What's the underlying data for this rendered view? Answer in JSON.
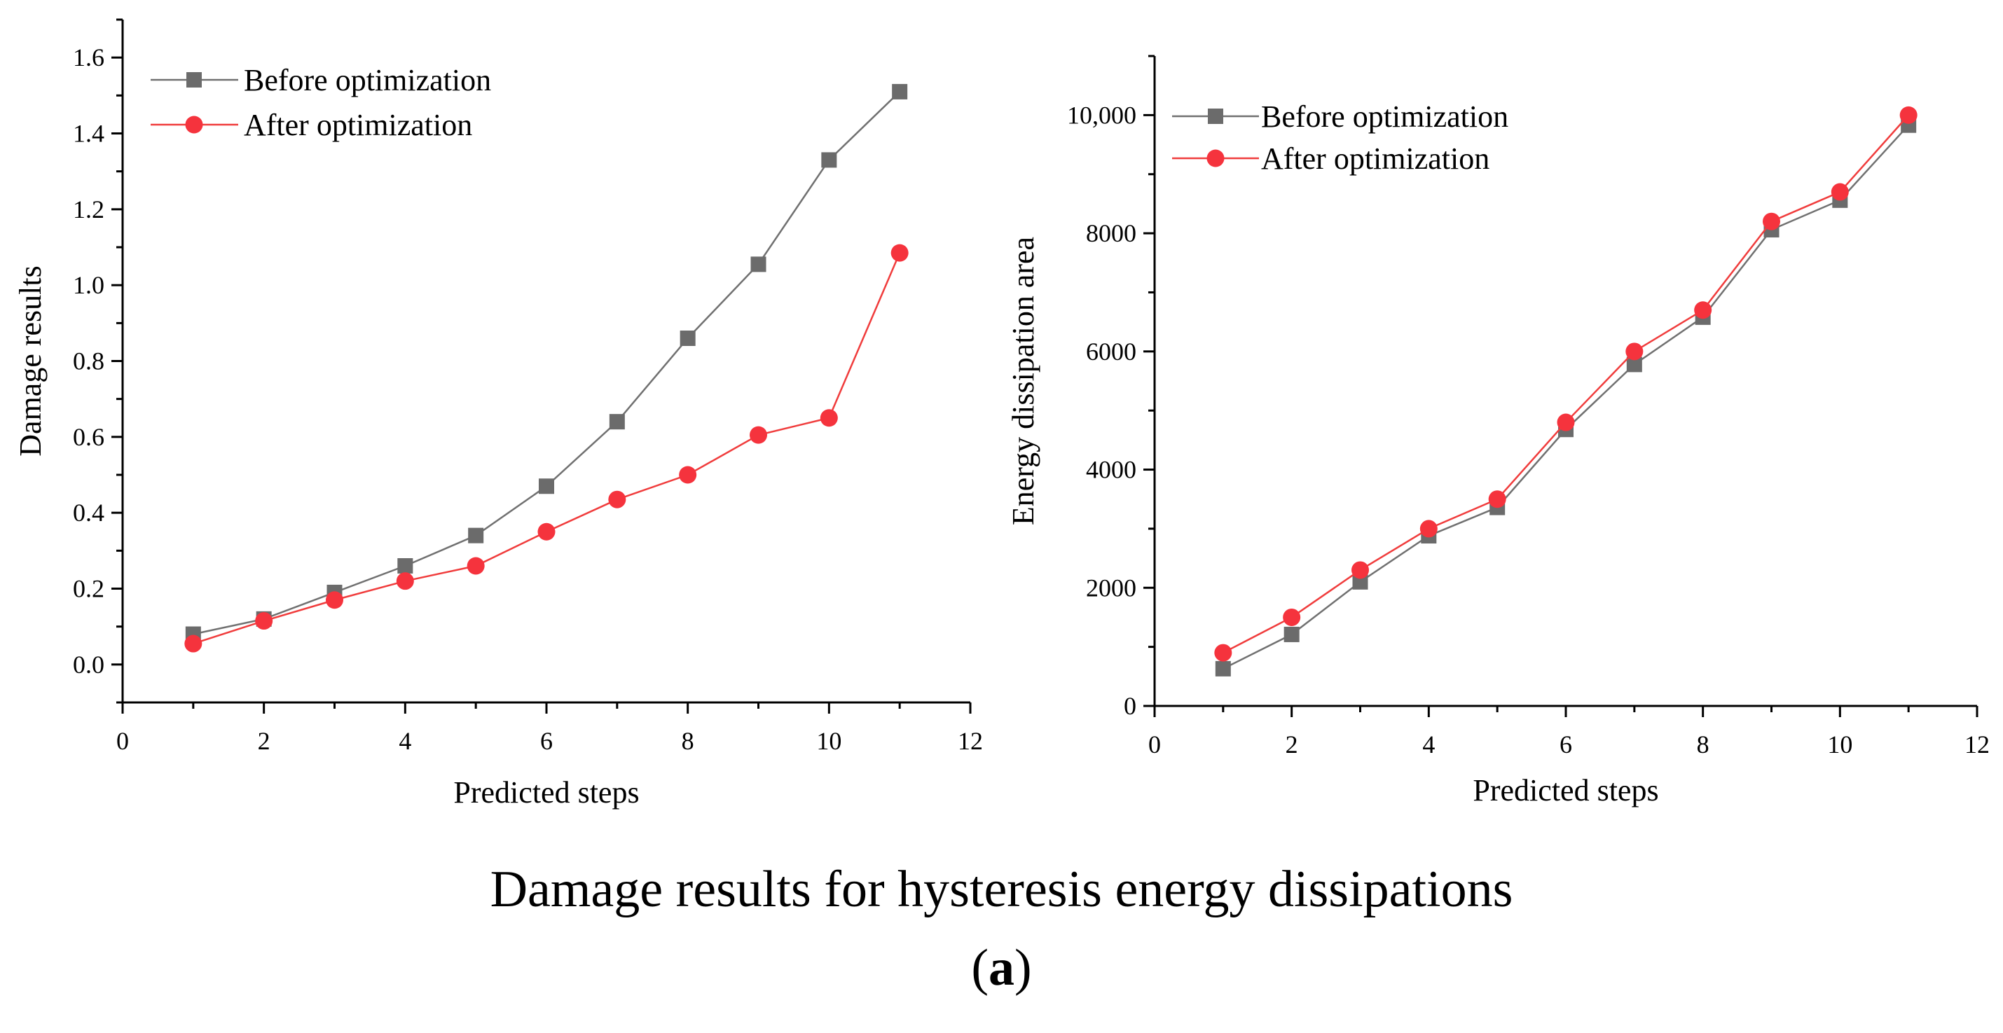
{
  "figure": {
    "caption": "Damage results for hysteresis energy dissipations",
    "label_open": "(",
    "label_letter": "a",
    "label_close": ")"
  },
  "chart_data": [
    {
      "type": "line",
      "title": "",
      "xlabel": "Predicted steps",
      "ylabel": "Damage results",
      "xlim": [
        0,
        12
      ],
      "ylim": [
        -0.1,
        1.7
      ],
      "xticks": [
        0,
        2,
        4,
        6,
        8,
        10,
        12
      ],
      "xtick_labels": [
        "0",
        "2",
        "4",
        "6",
        "8",
        "10",
        "12"
      ],
      "yticks": [
        0.0,
        0.2,
        0.4,
        0.6,
        0.8,
        1.0,
        1.2,
        1.4,
        1.6
      ],
      "ytick_labels": [
        "0.0",
        "0.2",
        "0.4",
        "0.6",
        "0.8",
        "1.0",
        "1.2",
        "1.4",
        "1.6"
      ],
      "legend_position": "top-left",
      "grid": false,
      "series": [
        {
          "name": "Before optimization",
          "marker": "square",
          "line_color": "#707070",
          "marker_color": "#6b6b6b",
          "x": [
            1,
            2,
            3,
            4,
            5,
            6,
            7,
            8,
            9,
            10,
            11
          ],
          "values": [
            0.08,
            0.12,
            0.19,
            0.26,
            0.34,
            0.47,
            0.64,
            0.86,
            1.055,
            1.33,
            1.51
          ]
        },
        {
          "name": "After optimization",
          "marker": "circle",
          "line_color": "#f03c3c",
          "marker_color": "#f5333d",
          "x": [
            1,
            2,
            3,
            4,
            5,
            6,
            7,
            8,
            9,
            10,
            11
          ],
          "values": [
            0.055,
            0.115,
            0.17,
            0.22,
            0.26,
            0.35,
            0.435,
            0.5,
            0.605,
            0.65,
            1.085
          ]
        }
      ]
    },
    {
      "type": "line",
      "title": "",
      "xlabel": "Predicted steps",
      "ylabel": "Energy dissipation area",
      "xlim": [
        0,
        12
      ],
      "ylim": [
        0,
        11000
      ],
      "xticks": [
        0,
        2,
        4,
        6,
        8,
        10,
        12
      ],
      "xtick_labels": [
        "0",
        "2",
        "4",
        "6",
        "8",
        "10",
        "12"
      ],
      "yticks": [
        0,
        2000,
        4000,
        6000,
        8000,
        10000
      ],
      "ytick_labels": [
        "0",
        "2000",
        "4000",
        "6000",
        "8000",
        "10,000"
      ],
      "legend_position": "top-left",
      "grid": false,
      "series": [
        {
          "name": "Before optimization",
          "marker": "square",
          "line_color": "#707070",
          "marker_color": "#6b6b6b",
          "x": [
            1,
            2,
            3,
            4,
            5,
            6,
            7,
            8,
            9,
            10,
            11
          ],
          "values": [
            630,
            1210,
            2100,
            2880,
            3360,
            4680,
            5780,
            6580,
            8060,
            8560,
            9830
          ]
        },
        {
          "name": "After optimization",
          "marker": "circle",
          "line_color": "#f03c3c",
          "marker_color": "#f5333d",
          "x": [
            1,
            2,
            3,
            4,
            5,
            6,
            7,
            8,
            9,
            10,
            11
          ],
          "values": [
            900,
            1500,
            2300,
            3000,
            3500,
            4800,
            6000,
            6700,
            8200,
            8700,
            10000
          ]
        }
      ]
    }
  ]
}
